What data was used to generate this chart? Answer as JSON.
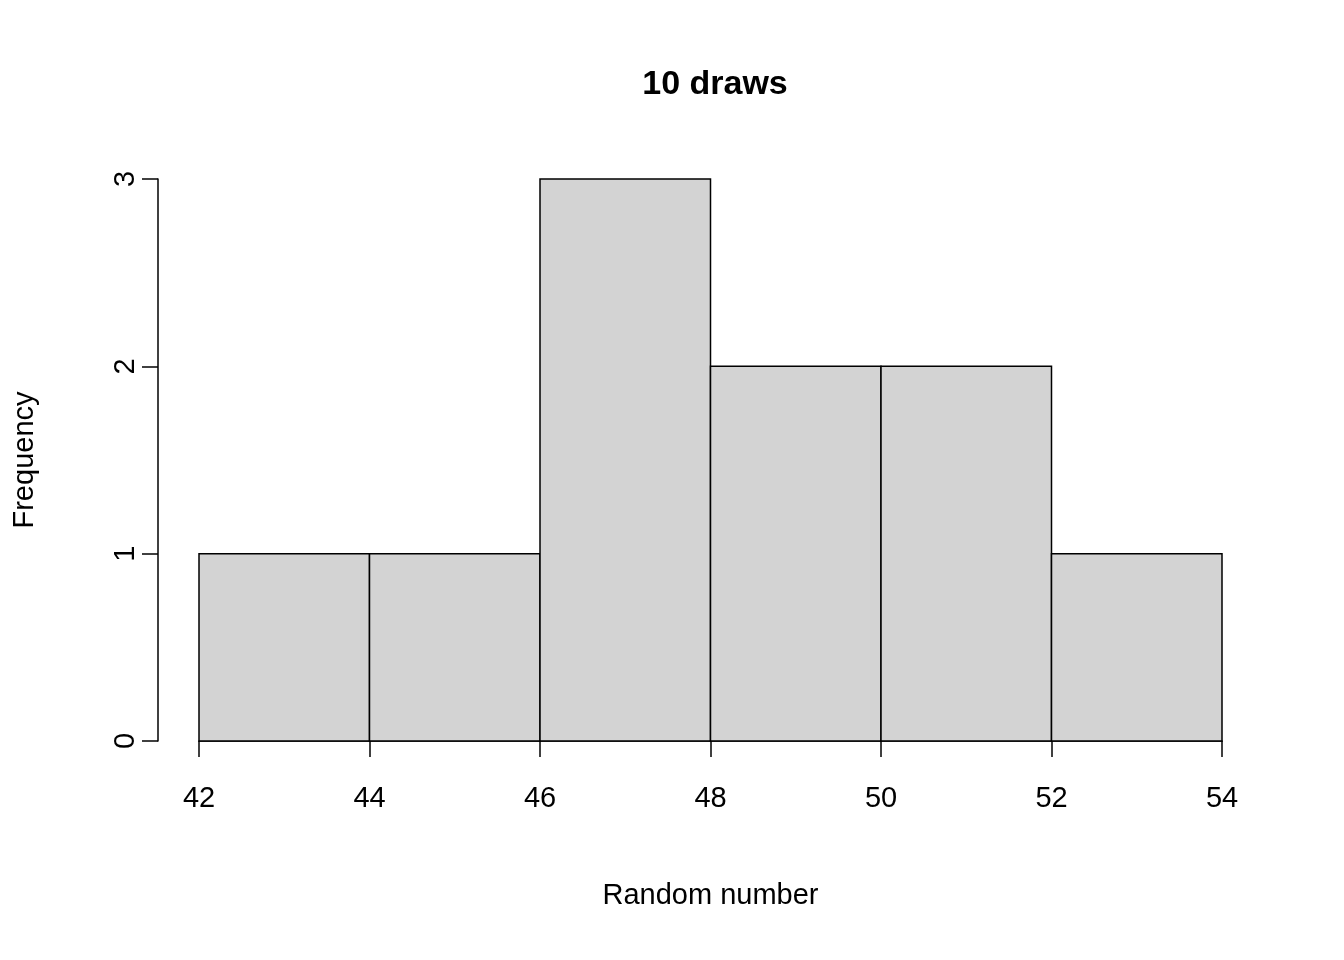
{
  "chart_data": {
    "type": "histogram",
    "title": "10 draws",
    "xlabel": "Random number",
    "ylabel": "Frequency",
    "bins": [
      42,
      44,
      46,
      48,
      50,
      52,
      54
    ],
    "values": [
      1,
      1,
      3,
      2,
      2,
      1
    ],
    "color": "#d3d3d3",
    "xlim": [
      42,
      54
    ],
    "xticks": [
      42,
      44,
      46,
      48,
      50,
      52,
      54
    ],
    "ylim": [
      0,
      3
    ],
    "yticks": [
      0,
      1,
      2,
      3
    ]
  }
}
